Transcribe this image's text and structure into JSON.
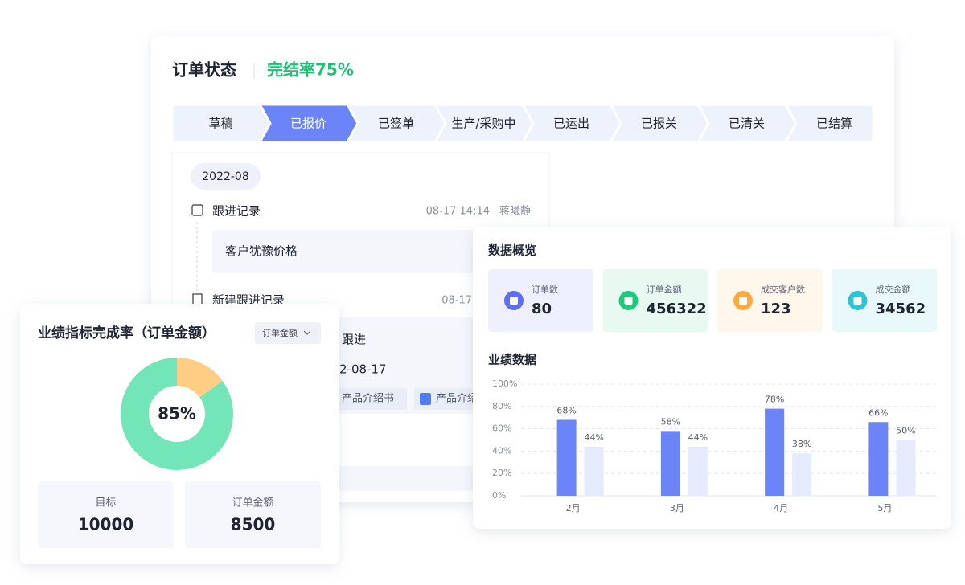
{
  "order_status": {
    "title": "订单状态",
    "completion": "完结率75%",
    "steps": [
      "草稿",
      "已报价",
      "已签单",
      "生产/采购中",
      "已运出",
      "已报关",
      "已清关",
      "已结算"
    ],
    "active_step": 1
  },
  "timeline": {
    "month": "2022-08",
    "entries": [
      {
        "title": "跟进记录",
        "time": "08-17 14:14",
        "author": "蒋曦静",
        "note": "客户犹豫价格"
      },
      {
        "title": "新建跟进记录",
        "time": "08-17"
      }
    ],
    "fragments": [
      "跟进",
      "2-08-17"
    ],
    "attachments": [
      "产品介绍书",
      "产品介绍"
    ]
  },
  "target_card": {
    "title": "业绩指标完成率（订单金额）",
    "dropdown": "订单金额",
    "chart_data": {
      "type": "pie",
      "values": [
        85,
        15
      ],
      "value_labels": [
        "85%",
        null
      ],
      "colors": [
        "#72e6b9",
        "#ffcd83"
      ]
    },
    "stats": [
      {
        "label": "目标",
        "value": 10000
      },
      {
        "label": "订单金额",
        "value": 8500
      }
    ]
  },
  "overview": {
    "title": "数据概览",
    "kpis": [
      {
        "label": "订单数",
        "value": 80,
        "color": "#5d6ff2"
      },
      {
        "label": "订单金额",
        "value": 456322,
        "color": "#1fc97a"
      },
      {
        "label": "成交客户数",
        "value": 123,
        "color": "#ffa940"
      },
      {
        "label": "成交金额",
        "value": 34562,
        "color": "#2cc4d6"
      }
    ]
  },
  "performance": {
    "title": "业绩数据",
    "chart_data": {
      "type": "bar",
      "categories": [
        "2月",
        "3月",
        "4月",
        "5月"
      ],
      "series": [
        {
          "color": "#6b84f7",
          "values": [
            68,
            58,
            78,
            66
          ],
          "value_labels": [
            "68%",
            "58%",
            "78%",
            "66%"
          ]
        },
        {
          "color": "#e6eafd",
          "values": [
            44,
            44,
            38,
            50
          ],
          "value_labels": [
            "44%",
            "44%",
            "38%",
            "50%"
          ]
        }
      ],
      "ylim": [
        0,
        100
      ],
      "yticks": [
        {
          "value": 0,
          "label": "0%"
        },
        {
          "value": 20,
          "label": "20%"
        },
        {
          "value": 40,
          "label": "40%"
        },
        {
          "value": 60,
          "label": "60%"
        },
        {
          "value": 80,
          "label": "80%"
        },
        {
          "value": 100,
          "label": "100%"
        }
      ],
      "grid": true
    }
  }
}
